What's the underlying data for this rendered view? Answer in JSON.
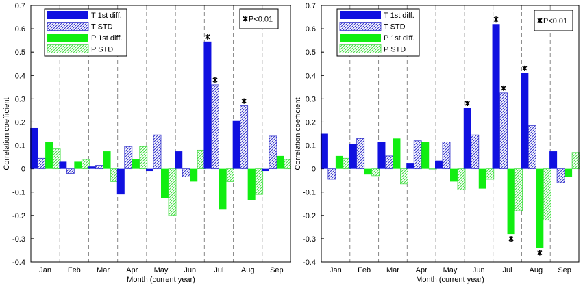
{
  "chart_data": [
    {
      "type": "bar",
      "panel": "left",
      "xlabel": "Month (current year)",
      "ylabel": "Correlation coefficient",
      "ylim": [
        -0.4,
        0.7
      ],
      "yticks": [
        "-0.4",
        "-0.3",
        "-0.2",
        "-0.1",
        "0",
        "0.1",
        "0.2",
        "0.3",
        "0.4",
        "0.5",
        "0.6",
        "0.7"
      ],
      "categories": [
        "Jan",
        "Feb",
        "Mar",
        "Apr",
        "May",
        "Jun",
        "Jul",
        "Aug",
        "Sep"
      ],
      "series": [
        {
          "name": "T 1st diff.",
          "color": "#1010e0",
          "style": "solid",
          "values": [
            0.175,
            0.03,
            0.01,
            -0.11,
            -0.01,
            0.075,
            0.545,
            0.205,
            -0.01
          ]
        },
        {
          "name": "T STD",
          "color": "#3333cc",
          "style": "hatch",
          "values": [
            0.045,
            -0.02,
            0.015,
            0.095,
            0.145,
            -0.035,
            0.36,
            0.27,
            0.14
          ]
        },
        {
          "name": "P 1st diff.",
          "color": "#11ee11",
          "style": "solid",
          "values": [
            0.115,
            0.03,
            0.075,
            0.04,
            -0.125,
            -0.055,
            -0.175,
            -0.135,
            0.055
          ]
        },
        {
          "name": "P STD",
          "color": "#44dd44",
          "style": "hatch",
          "values": [
            0.085,
            0.04,
            -0.055,
            0.095,
            -0.2,
            0.08,
            -0.055,
            -0.11,
            0.04
          ]
        }
      ],
      "significant": [
        {
          "series": 0,
          "category": 6
        },
        {
          "series": 1,
          "category": 6
        },
        {
          "series": 1,
          "category": 7
        }
      ],
      "significance_legend": "P<0.01"
    },
    {
      "type": "bar",
      "panel": "right",
      "xlabel": "Month (current year)",
      "ylabel": "Correlation coefficient",
      "ylim": [
        -0.4,
        0.7
      ],
      "yticks": [
        "-0.4",
        "-0.3",
        "-0.2",
        "-0.1",
        "0",
        "0.1",
        "0.2",
        "0.3",
        "0.4",
        "0.5",
        "0.6",
        "0.7"
      ],
      "categories": [
        "Jan",
        "Feb",
        "Mar",
        "Apr",
        "May",
        "Jun",
        "Jul",
        "Aug",
        "Sep"
      ],
      "series": [
        {
          "name": "T 1st diff.",
          "color": "#1010e0",
          "style": "solid",
          "values": [
            0.15,
            0.105,
            0.115,
            0.025,
            0.035,
            0.26,
            0.62,
            0.41,
            0.075
          ]
        },
        {
          "name": "T STD",
          "color": "#3333cc",
          "style": "hatch",
          "values": [
            -0.045,
            0.13,
            0.055,
            0.12,
            0.115,
            0.145,
            0.325,
            0.185,
            -0.06
          ]
        },
        {
          "name": "P 1st diff.",
          "color": "#11ee11",
          "style": "solid",
          "values": [
            0.055,
            -0.025,
            0.13,
            0.115,
            -0.055,
            -0.085,
            -0.28,
            -0.34,
            -0.035
          ]
        },
        {
          "name": "P STD",
          "color": "#44dd44",
          "style": "hatch",
          "values": [
            0.045,
            -0.03,
            -0.065,
            0.0,
            -0.09,
            -0.045,
            -0.18,
            -0.22,
            0.07
          ]
        }
      ],
      "significant": [
        {
          "series": 0,
          "category": 5
        },
        {
          "series": 0,
          "category": 6
        },
        {
          "series": 1,
          "category": 6
        },
        {
          "series": 2,
          "category": 6
        },
        {
          "series": 0,
          "category": 7
        },
        {
          "series": 2,
          "category": 7
        }
      ],
      "significance_legend": "P<0.01"
    }
  ]
}
